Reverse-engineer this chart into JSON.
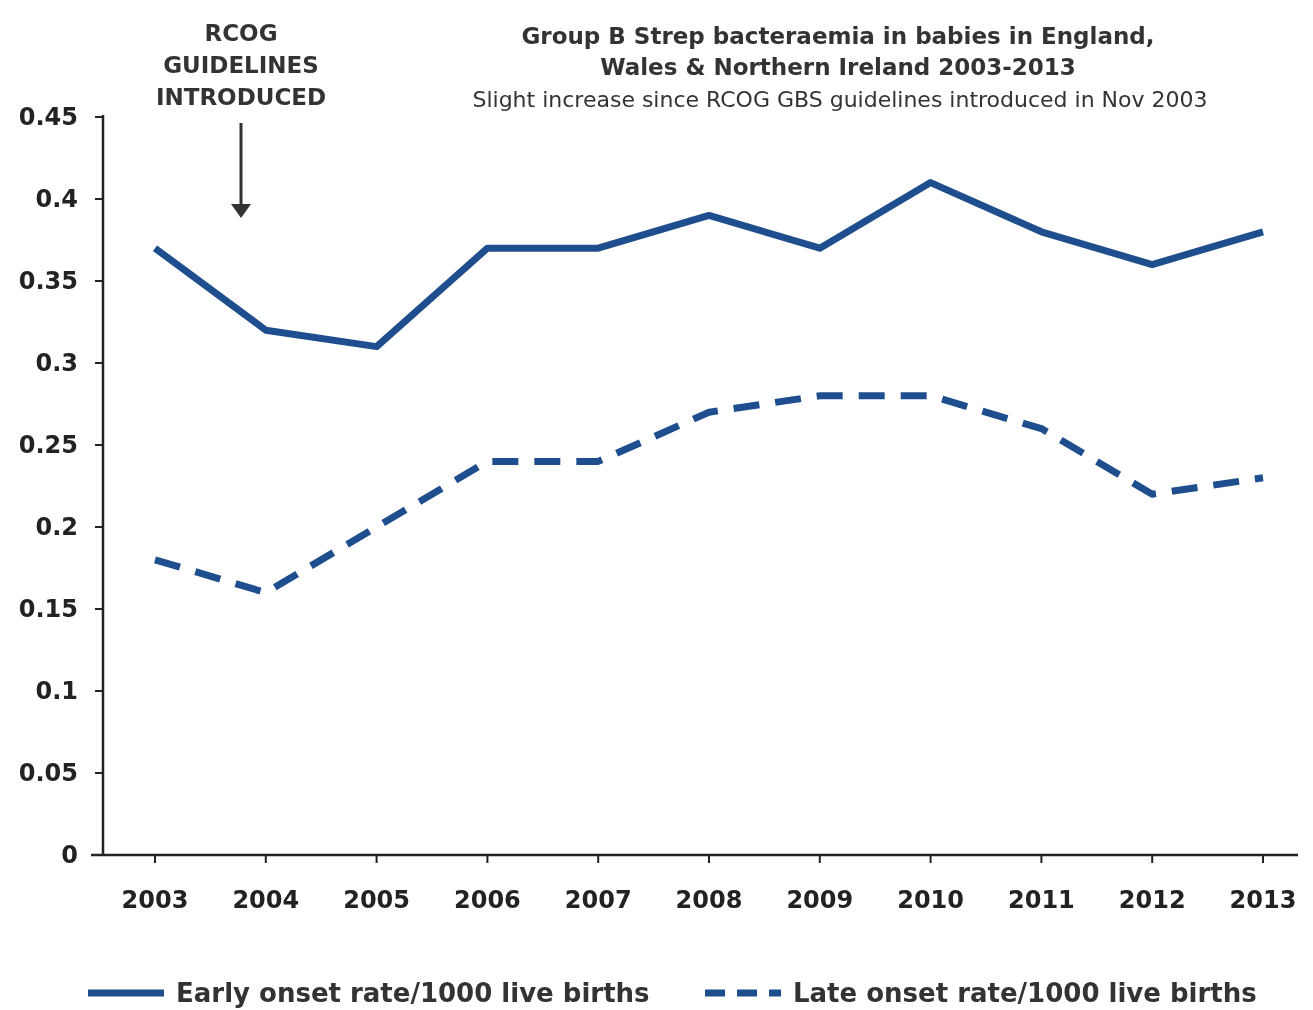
{
  "chart_data": {
    "type": "line",
    "title": "Group B Strep bacteraemia in babies in England,\nWales & Northern Ireland 2003-2013",
    "subtitle": "Slight increase since RCOG GBS guidelines introduced in Nov 2003",
    "categories": [
      "2003",
      "2004",
      "2005",
      "2006",
      "2007",
      "2008",
      "2009",
      "2010",
      "2011",
      "2012",
      "2013"
    ],
    "series": [
      {
        "name": "Early onset rate/1000 live births",
        "color": "#1f4e8f",
        "line_style": "solid",
        "values": [
          0.37,
          0.32,
          0.31,
          0.37,
          0.37,
          0.39,
          0.37,
          0.41,
          0.38,
          0.36,
          0.38
        ]
      },
      {
        "name": "Late onset rate/1000 live births",
        "color": "#1f4e8f",
        "line_style": "dashed",
        "values": [
          0.18,
          0.16,
          0.2,
          0.24,
          0.24,
          0.27,
          0.28,
          0.28,
          0.26,
          0.22,
          0.23
        ]
      }
    ],
    "ylim": [
      0,
      0.45
    ],
    "yticks": [
      0,
      0.05,
      0.1,
      0.15,
      0.2,
      0.25,
      0.3,
      0.35,
      0.4,
      0.45
    ],
    "annotations": [
      "RCOG\nGUIDELINES\nINTRODUCED"
    ],
    "grid": false,
    "legend": "bottom"
  }
}
